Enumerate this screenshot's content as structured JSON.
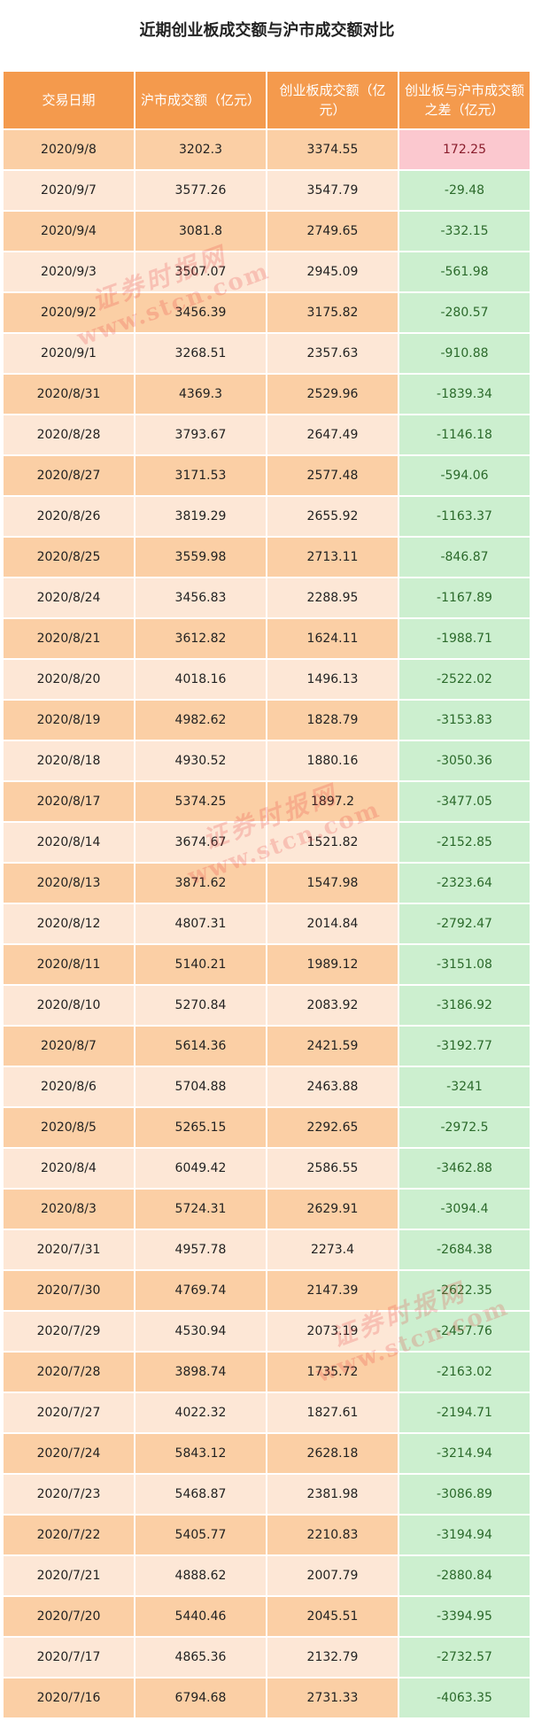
{
  "title": "近期创业板成交额与沪市成交额对比",
  "headers": [
    "交易日期",
    "沪市成交额（亿元）",
    "创业板成交额（亿元）",
    "创业板与沪市成交额之差（亿元）"
  ],
  "rows": [
    {
      "date": "2020/9/8",
      "sh": "3202.3",
      "cyb": "3374.55",
      "diff": "172.25"
    },
    {
      "date": "2020/9/7",
      "sh": "3577.26",
      "cyb": "3547.79",
      "diff": "-29.48"
    },
    {
      "date": "2020/9/4",
      "sh": "3081.8",
      "cyb": "2749.65",
      "diff": "-332.15"
    },
    {
      "date": "2020/9/3",
      "sh": "3507.07",
      "cyb": "2945.09",
      "diff": "-561.98"
    },
    {
      "date": "2020/9/2",
      "sh": "3456.39",
      "cyb": "3175.82",
      "diff": "-280.57"
    },
    {
      "date": "2020/9/1",
      "sh": "3268.51",
      "cyb": "2357.63",
      "diff": "-910.88"
    },
    {
      "date": "2020/8/31",
      "sh": "4369.3",
      "cyb": "2529.96",
      "diff": "-1839.34"
    },
    {
      "date": "2020/8/28",
      "sh": "3793.67",
      "cyb": "2647.49",
      "diff": "-1146.18"
    },
    {
      "date": "2020/8/27",
      "sh": "3171.53",
      "cyb": "2577.48",
      "diff": "-594.06"
    },
    {
      "date": "2020/8/26",
      "sh": "3819.29",
      "cyb": "2655.92",
      "diff": "-1163.37"
    },
    {
      "date": "2020/8/25",
      "sh": "3559.98",
      "cyb": "2713.11",
      "diff": "-846.87"
    },
    {
      "date": "2020/8/24",
      "sh": "3456.83",
      "cyb": "2288.95",
      "diff": "-1167.89"
    },
    {
      "date": "2020/8/21",
      "sh": "3612.82",
      "cyb": "1624.11",
      "diff": "-1988.71"
    },
    {
      "date": "2020/8/20",
      "sh": "4018.16",
      "cyb": "1496.13",
      "diff": "-2522.02"
    },
    {
      "date": "2020/8/19",
      "sh": "4982.62",
      "cyb": "1828.79",
      "diff": "-3153.83"
    },
    {
      "date": "2020/8/18",
      "sh": "4930.52",
      "cyb": "1880.16",
      "diff": "-3050.36"
    },
    {
      "date": "2020/8/17",
      "sh": "5374.25",
      "cyb": "1897.2",
      "diff": "-3477.05"
    },
    {
      "date": "2020/8/14",
      "sh": "3674.67",
      "cyb": "1521.82",
      "diff": "-2152.85"
    },
    {
      "date": "2020/8/13",
      "sh": "3871.62",
      "cyb": "1547.98",
      "diff": "-2323.64"
    },
    {
      "date": "2020/8/12",
      "sh": "4807.31",
      "cyb": "2014.84",
      "diff": "-2792.47"
    },
    {
      "date": "2020/8/11",
      "sh": "5140.21",
      "cyb": "1989.12",
      "diff": "-3151.08"
    },
    {
      "date": "2020/8/10",
      "sh": "5270.84",
      "cyb": "2083.92",
      "diff": "-3186.92"
    },
    {
      "date": "2020/8/7",
      "sh": "5614.36",
      "cyb": "2421.59",
      "diff": "-3192.77"
    },
    {
      "date": "2020/8/6",
      "sh": "5704.88",
      "cyb": "2463.88",
      "diff": "-3241"
    },
    {
      "date": "2020/8/5",
      "sh": "5265.15",
      "cyb": "2292.65",
      "diff": "-2972.5"
    },
    {
      "date": "2020/8/4",
      "sh": "6049.42",
      "cyb": "2586.55",
      "diff": "-3462.88"
    },
    {
      "date": "2020/8/3",
      "sh": "5724.31",
      "cyb": "2629.91",
      "diff": "-3094.4"
    },
    {
      "date": "2020/7/31",
      "sh": "4957.78",
      "cyb": "2273.4",
      "diff": "-2684.38"
    },
    {
      "date": "2020/7/30",
      "sh": "4769.74",
      "cyb": "2147.39",
      "diff": "-2622.35"
    },
    {
      "date": "2020/7/29",
      "sh": "4530.94",
      "cyb": "2073.19",
      "diff": "-2457.76"
    },
    {
      "date": "2020/7/28",
      "sh": "3898.74",
      "cyb": "1735.72",
      "diff": "-2163.02"
    },
    {
      "date": "2020/7/27",
      "sh": "4022.32",
      "cyb": "1827.61",
      "diff": "-2194.71"
    },
    {
      "date": "2020/7/24",
      "sh": "5843.12",
      "cyb": "2628.18",
      "diff": "-3214.94"
    },
    {
      "date": "2020/7/23",
      "sh": "5468.87",
      "cyb": "2381.98",
      "diff": "-3086.89"
    },
    {
      "date": "2020/7/22",
      "sh": "5405.77",
      "cyb": "2210.83",
      "diff": "-3194.94"
    },
    {
      "date": "2020/7/21",
      "sh": "4888.62",
      "cyb": "2007.79",
      "diff": "-2880.84"
    },
    {
      "date": "2020/7/20",
      "sh": "5440.46",
      "cyb": "2045.51",
      "diff": "-3394.95"
    },
    {
      "date": "2020/7/17",
      "sh": "4865.36",
      "cyb": "2132.79",
      "diff": "-2732.57"
    },
    {
      "date": "2020/7/16",
      "sh": "6794.68",
      "cyb": "2731.33",
      "diff": "-4063.35"
    }
  ],
  "watermark": {
    "cn": "证券时报网",
    "url": "www.stcn.com"
  },
  "colors": {
    "header": "#f49a4d",
    "row_dark": "#fbcfa5",
    "row_light": "#fde7d6",
    "positive": "#fbc8cf",
    "negative": "#ccefcf"
  }
}
